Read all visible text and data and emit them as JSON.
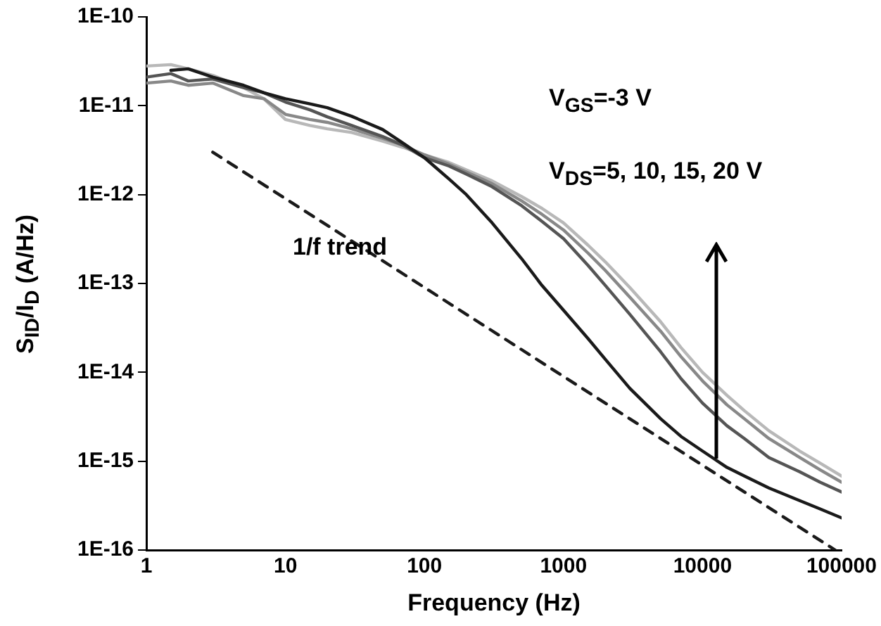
{
  "chart_data": {
    "type": "line",
    "xlabel": "Frequency (Hz)",
    "ylabel": "S$_{ID}$/I$_{D}$ (A/Hz)",
    "log": "xy",
    "xlim": [
      1,
      100000
    ],
    "xticks": [
      1,
      10,
      100,
      1000,
      10000,
      100000
    ],
    "ylim": [
      1e-16,
      1e-10
    ],
    "yticks": [
      {
        "value": 1e-16,
        "label": "1E-16"
      },
      {
        "value": 1e-15,
        "label": "1E-15"
      },
      {
        "value": 1e-14,
        "label": "1E-14"
      },
      {
        "value": 1e-13,
        "label": "1E-13"
      },
      {
        "value": 1e-12,
        "label": "1E-12"
      },
      {
        "value": 1e-11,
        "label": "1E-11"
      },
      {
        "value": 1e-10,
        "label": "1E-10"
      }
    ],
    "x": [
      1,
      1.5,
      2,
      3,
      5,
      7,
      10,
      15,
      20,
      30,
      50,
      70,
      100,
      150,
      200,
      300,
      500,
      700,
      1000,
      1500,
      2000,
      3000,
      5000,
      7000,
      10000,
      15000,
      20000,
      30000,
      50000,
      70000,
      100000
    ],
    "marker": "none",
    "legend": false,
    "series": [
      {
        "color": "#1a1a1a",
        "values": [
          null,
          2.5e-11,
          2.6e-11,
          2.1e-11,
          1.7e-11,
          1.4e-11,
          1.2e-11,
          1.05e-11,
          9.5e-12,
          7.6e-12,
          5.4e-12,
          3.8e-12,
          2.6e-12,
          1.5e-12,
          1e-12,
          5e-13,
          1.9e-13,
          9.5e-14,
          5e-14,
          2.4e-14,
          1.4e-14,
          6.6e-15,
          3e-15,
          1.9e-15,
          1.3e-15,
          8.5e-16,
          6.8e-16,
          5e-16,
          3.6e-16,
          2.9e-16,
          2.3e-16
        ]
      },
      {
        "color": "#555555",
        "values": [
          2.1e-11,
          2.3e-11,
          1.9e-11,
          2e-11,
          1.6e-11,
          1.4e-11,
          1.1e-11,
          9e-12,
          7.5e-12,
          6e-12,
          4.5e-12,
          3.6e-12,
          2.6e-12,
          2.1e-12,
          1.7e-12,
          1.25e-12,
          7.5e-13,
          5e-13,
          3.2e-13,
          1.6e-13,
          9.5e-14,
          4.5e-14,
          1.7e-14,
          8.5e-15,
          4.5e-15,
          2.5e-15,
          1.8e-15,
          1.1e-15,
          7.6e-16,
          5.8e-16,
          4.5e-16
        ]
      },
      {
        "color": "#888888",
        "values": [
          1.8e-11,
          1.9e-11,
          1.7e-11,
          1.8e-11,
          1.3e-11,
          1.2e-11,
          8e-12,
          7e-12,
          6.5e-12,
          5.5e-12,
          4.3e-12,
          3.6e-12,
          2.8e-12,
          2.2e-12,
          1.8e-12,
          1.35e-12,
          8.5e-13,
          6e-13,
          4e-13,
          2.2e-13,
          1.4e-13,
          7e-14,
          2.9e-14,
          1.5e-14,
          8e-15,
          4.3e-15,
          3e-15,
          1.8e-15,
          1.1e-15,
          8e-16,
          5.8e-16
        ]
      },
      {
        "color": "#b8b8b8",
        "values": [
          2.8e-11,
          2.9e-11,
          2.6e-11,
          2.2e-11,
          1.6e-11,
          1.2e-11,
          7e-12,
          6e-12,
          5.5e-12,
          5e-12,
          4e-12,
          3.4e-12,
          2.8e-12,
          2.3e-12,
          1.9e-12,
          1.45e-12,
          9.5e-13,
          7e-13,
          4.8e-13,
          2.7e-13,
          1.75e-13,
          9e-14,
          3.7e-14,
          1.9e-14,
          1e-14,
          5.5e-15,
          3.7e-15,
          2.2e-15,
          1.3e-15,
          9.5e-16,
          6.8e-16
        ]
      },
      {
        "color": "#1a1a1a",
        "x": [
          3,
          90000
        ],
        "values": [
          3e-12,
          1e-16
        ],
        "line_style": "dashed"
      }
    ],
    "annotations": [
      "V$_{GS}$=-3 V",
      "V$_{DS}$=5, 10, 15, 20 V",
      "1/f trend"
    ]
  }
}
